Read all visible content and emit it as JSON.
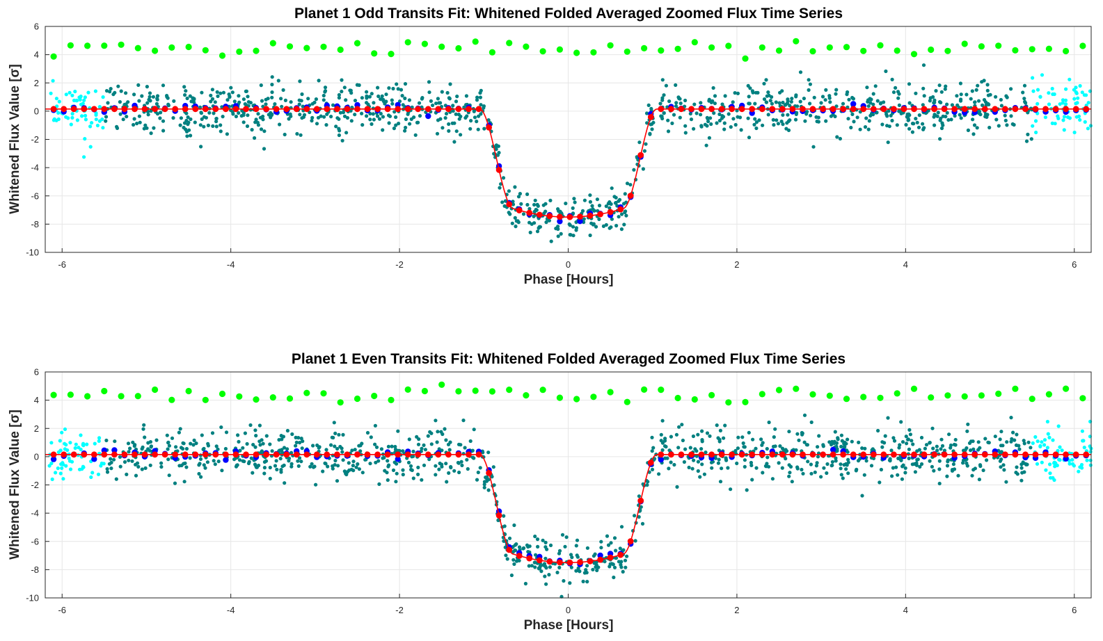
{
  "chart_data": [
    {
      "type": "scatter",
      "title": "Planet 1 Odd Transits Fit: Whitened Folded Averaged Zoomed Flux Time Series",
      "xlabel": "Phase [Hours]",
      "ylabel": "Whitened Flux Value [σ]",
      "xlim": [
        -6.2,
        6.2
      ],
      "ylim": [
        -10,
        6
      ],
      "xticks": [
        -6,
        -4,
        -2,
        0,
        2,
        4,
        6
      ],
      "yticks": [
        -10,
        -8,
        -6,
        -4,
        -2,
        0,
        2,
        4,
        6
      ],
      "grid": true,
      "transit": {
        "depth": 7.5,
        "t_ingress_start": 1.05,
        "t_flat": 0.65,
        "scatter": 0.9,
        "seed": 11
      },
      "series": [
        {
          "role": "out-of-window whitened flux",
          "color": "#00ffff",
          "x_ranges": [
            [
              -6.15,
              -5.5
            ],
            [
              5.5,
              6.2
            ]
          ]
        },
        {
          "role": "whitened flux",
          "color": "#008080",
          "x_range": [
            -5.5,
            5.5
          ]
        },
        {
          "role": "binned averaged flux",
          "color": "#0000ff",
          "bin_width": 0.12
        },
        {
          "role": "model fit",
          "color": "#ff0000",
          "bin_width": 0.12,
          "curve": [
            [
              -6.2,
              0.1
            ],
            [
              -1.05,
              0.25
            ],
            [
              -0.95,
              -0.6
            ],
            [
              -0.8,
              -3.3
            ],
            [
              -0.65,
              -6.4
            ],
            [
              -0.4,
              -7.2
            ],
            [
              0,
              -7.5
            ],
            [
              0.4,
              -7.2
            ],
            [
              0.65,
              -6.4
            ],
            [
              0.8,
              -3.3
            ],
            [
              0.95,
              -0.6
            ],
            [
              1.05,
              0.25
            ],
            [
              6.2,
              0.1
            ]
          ]
        },
        {
          "role": "residuals (offset)",
          "color": "#00ff00",
          "bin_width": 0.2,
          "offset": 4.4
        }
      ]
    },
    {
      "type": "scatter",
      "title": "Planet 1 Even Transits Fit: Whitened Folded Averaged Zoomed Flux Time Series",
      "xlabel": "Phase [Hours]",
      "ylabel": "Whitened Flux Value [σ]",
      "xlim": [
        -6.2,
        6.2
      ],
      "ylim": [
        -10,
        6
      ],
      "xticks": [
        -6,
        -4,
        -2,
        0,
        2,
        4,
        6
      ],
      "yticks": [
        -10,
        -8,
        -6,
        -4,
        -2,
        0,
        2,
        4,
        6
      ],
      "grid": true,
      "transit": {
        "depth": 7.5,
        "t_ingress_start": 1.05,
        "t_flat": 0.65,
        "scatter": 0.9,
        "seed": 29
      },
      "series": [
        {
          "role": "out-of-window whitened flux",
          "color": "#00ffff",
          "x_ranges": [
            [
              -6.15,
              -5.5
            ],
            [
              5.5,
              6.2
            ]
          ]
        },
        {
          "role": "whitened flux",
          "color": "#008080",
          "x_range": [
            -5.5,
            5.5
          ]
        },
        {
          "role": "binned averaged flux",
          "color": "#0000ff",
          "bin_width": 0.12
        },
        {
          "role": "model fit",
          "color": "#ff0000",
          "bin_width": 0.12,
          "curve": [
            [
              -6.2,
              0.1
            ],
            [
              -1.05,
              0.25
            ],
            [
              -0.95,
              -0.6
            ],
            [
              -0.8,
              -3.3
            ],
            [
              -0.65,
              -6.4
            ],
            [
              -0.4,
              -7.2
            ],
            [
              0,
              -7.5
            ],
            [
              0.4,
              -7.2
            ],
            [
              0.65,
              -6.4
            ],
            [
              0.8,
              -3.3
            ],
            [
              0.95,
              -0.6
            ],
            [
              1.05,
              0.25
            ],
            [
              6.2,
              0.1
            ]
          ]
        },
        {
          "role": "residuals (offset)",
          "color": "#00ff00",
          "bin_width": 0.2,
          "offset": 4.4
        }
      ]
    }
  ]
}
